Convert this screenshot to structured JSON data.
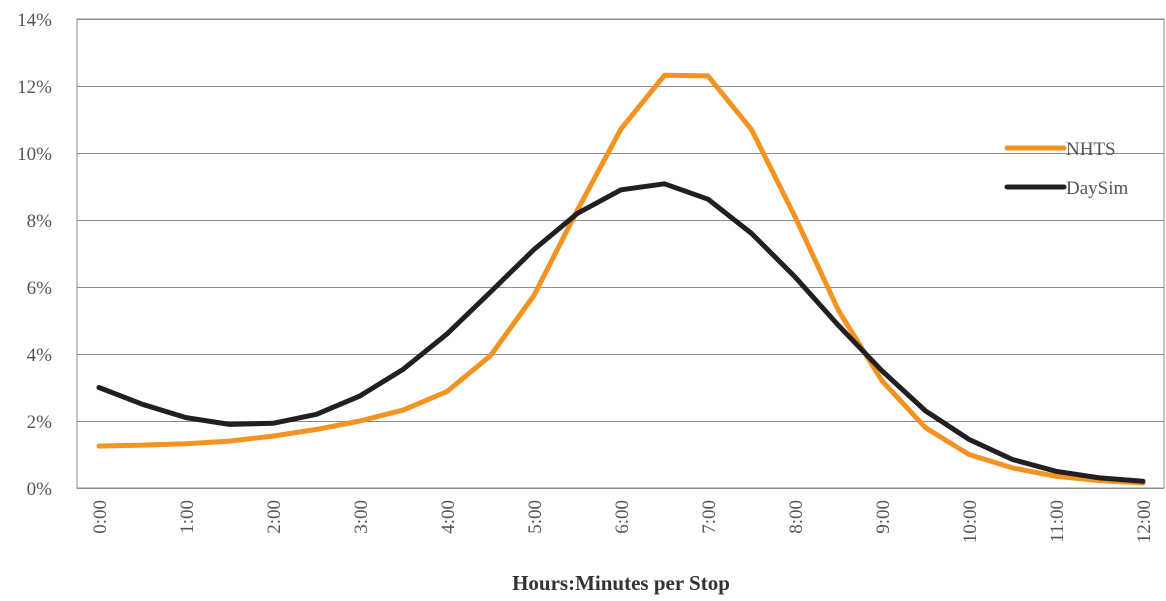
{
  "chart_data": {
    "type": "line",
    "title": "",
    "xlabel": "Hours:Minutes per Stop",
    "ylabel": "",
    "ylim": [
      0,
      14
    ],
    "yticks": [
      "0%",
      "2%",
      "4%",
      "6%",
      "8%",
      "10%",
      "12%",
      "14%"
    ],
    "ytick_values": [
      0,
      2,
      4,
      6,
      8,
      10,
      12,
      14
    ],
    "x": [
      0,
      0.5,
      1,
      1.5,
      2,
      2.5,
      3,
      3.5,
      4,
      4.5,
      5,
      5.5,
      6,
      6.5,
      7,
      7.5,
      8,
      8.5,
      9,
      9.5,
      10,
      10.5,
      11,
      11.5,
      12
    ],
    "xlim": [
      0,
      12
    ],
    "xtick_values": [
      0,
      1,
      2,
      3,
      4,
      5,
      6,
      7,
      8,
      9,
      10,
      11,
      12
    ],
    "xticks": [
      "0:00",
      "1:00",
      "2:00",
      "3:00",
      "4:00",
      "5:00",
      "6:00",
      "7:00",
      "8:00",
      "9:00",
      "10:00",
      "11:00",
      "12:00"
    ],
    "grid": true,
    "legend_position": "right",
    "series": [
      {
        "name": "NHTS",
        "color": "#f39321",
        "values": [
          1.25,
          1.28,
          1.32,
          1.4,
          1.55,
          1.75,
          2.0,
          2.33,
          2.88,
          3.95,
          5.75,
          8.3,
          10.72,
          12.32,
          12.3,
          10.7,
          8.1,
          5.3,
          3.2,
          1.8,
          1.0,
          0.6,
          0.35,
          0.22,
          0.15
        ]
      },
      {
        "name": "DaySim",
        "color": "#231f20",
        "values": [
          3.0,
          2.5,
          2.1,
          1.9,
          1.93,
          2.2,
          2.75,
          3.55,
          4.6,
          5.85,
          7.12,
          8.2,
          8.9,
          9.08,
          8.62,
          7.6,
          6.3,
          4.85,
          3.5,
          2.3,
          1.45,
          0.85,
          0.5,
          0.3,
          0.2
        ]
      }
    ]
  }
}
